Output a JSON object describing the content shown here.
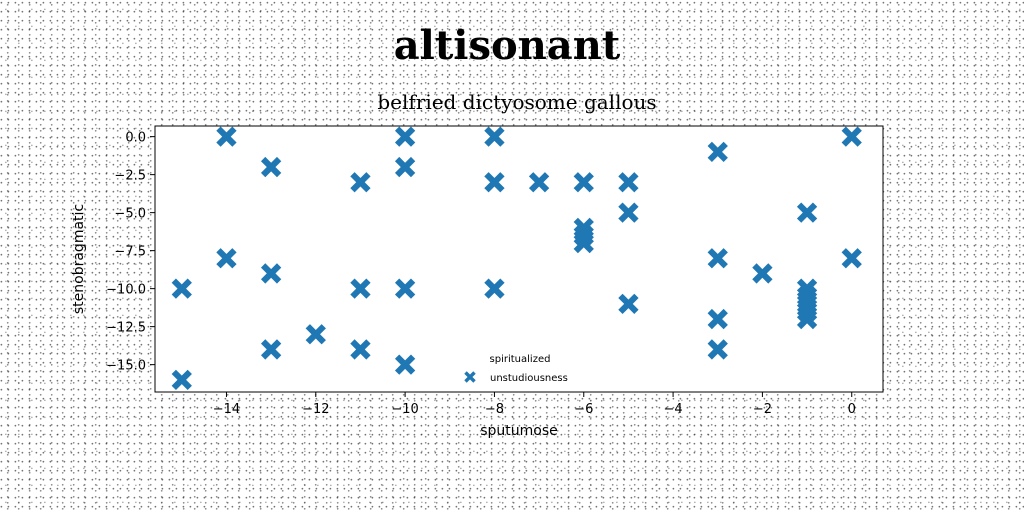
{
  "title": "altisonant",
  "subtitle": "belfried dictyosome gallous",
  "colors": {
    "marker": "#1f77b4",
    "axes": "#000000",
    "background": "#ffffff"
  },
  "chart_data": {
    "type": "scatter",
    "xlabel": "sputumose",
    "ylabel": "stenobragmatic",
    "xlim": [
      -15.6,
      0.7
    ],
    "ylim": [
      -16.8,
      0.7
    ],
    "x_ticks": [
      -14,
      -12,
      -10,
      -8,
      -6,
      -4,
      -2,
      0
    ],
    "y_ticks": [
      0.0,
      -2.5,
      -5.0,
      -7.5,
      -10.0,
      -12.5,
      -15.0
    ],
    "x_tick_labels": [
      "−14",
      "−12",
      "−10",
      "−8",
      "−6",
      "−4",
      "−2",
      "0"
    ],
    "y_tick_labels": [
      "0.0",
      "−2.5",
      "−5.0",
      "−7.5",
      "−10.0",
      "−12.5",
      "−15.0"
    ],
    "grid": false,
    "legend": {
      "title": "spiritualized",
      "placement": "lower-center"
    },
    "series": [
      {
        "name": "unstudiousness",
        "marker": "X",
        "points": [
          [
            -15,
            -10
          ],
          [
            -15,
            -16
          ],
          [
            -14,
            0
          ],
          [
            -14,
            -8
          ],
          [
            -13,
            -2
          ],
          [
            -13,
            -9
          ],
          [
            -13,
            -14
          ],
          [
            -12,
            -13
          ],
          [
            -11,
            -3
          ],
          [
            -11,
            -10
          ],
          [
            -11,
            -14
          ],
          [
            -10,
            0
          ],
          [
            -10,
            -2
          ],
          [
            -10,
            -10
          ],
          [
            -10,
            -15
          ],
          [
            -8,
            0
          ],
          [
            -8,
            -3
          ],
          [
            -8,
            -10
          ],
          [
            -7,
            -3
          ],
          [
            -6,
            -3
          ],
          [
            -6,
            -6
          ],
          [
            -6,
            -6.5
          ],
          [
            -6,
            -7
          ],
          [
            -5,
            -3
          ],
          [
            -5,
            -5
          ],
          [
            -5,
            -11
          ],
          [
            -3,
            -1
          ],
          [
            -3,
            -8
          ],
          [
            -3,
            -12
          ],
          [
            -3,
            -14
          ],
          [
            -2,
            -9
          ],
          [
            -1,
            -5
          ],
          [
            -1,
            -10
          ],
          [
            -1,
            -10.5
          ],
          [
            -1,
            -11
          ],
          [
            -1,
            -11.5
          ],
          [
            -1,
            -12
          ],
          [
            0,
            0
          ],
          [
            0,
            -8
          ]
        ]
      }
    ]
  }
}
